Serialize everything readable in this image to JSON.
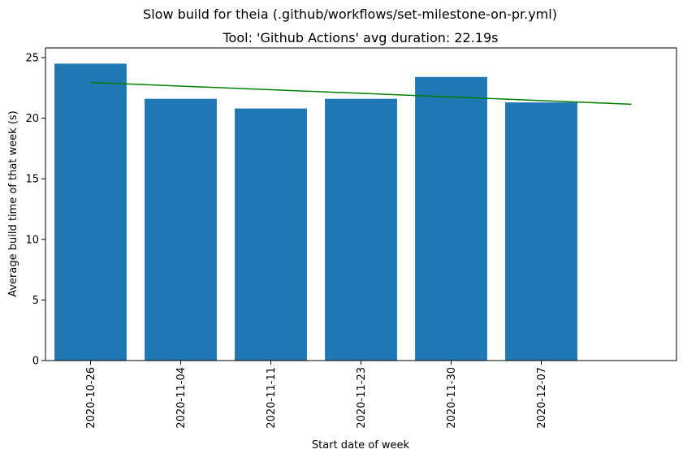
{
  "chart_data": {
    "type": "bar",
    "suptitle": "Slow build for theia (.github/workflows/set-milestone-on-pr.yml)",
    "title": "Tool: 'Github Actions' avg duration: 22.19s",
    "xlabel": "Start date of week",
    "ylabel": "Average build time of that week (s)",
    "categories": [
      "2020-10-26",
      "2020-11-04",
      "2020-11-11",
      "2020-11-23",
      "2020-11-30",
      "2020-12-07"
    ],
    "values": [
      24.5,
      21.6,
      20.8,
      21.6,
      23.4,
      21.3
    ],
    "ylim": [
      0,
      25.8
    ],
    "yticks": [
      0,
      5,
      10,
      15,
      20,
      25
    ],
    "xlim": [
      -0.5,
      6.5
    ],
    "bar_color": "#1f77b4",
    "trend": {
      "name": "trend",
      "x": [
        0,
        6
      ],
      "y": [
        22.95,
        21.15
      ],
      "color": "#008000"
    }
  }
}
